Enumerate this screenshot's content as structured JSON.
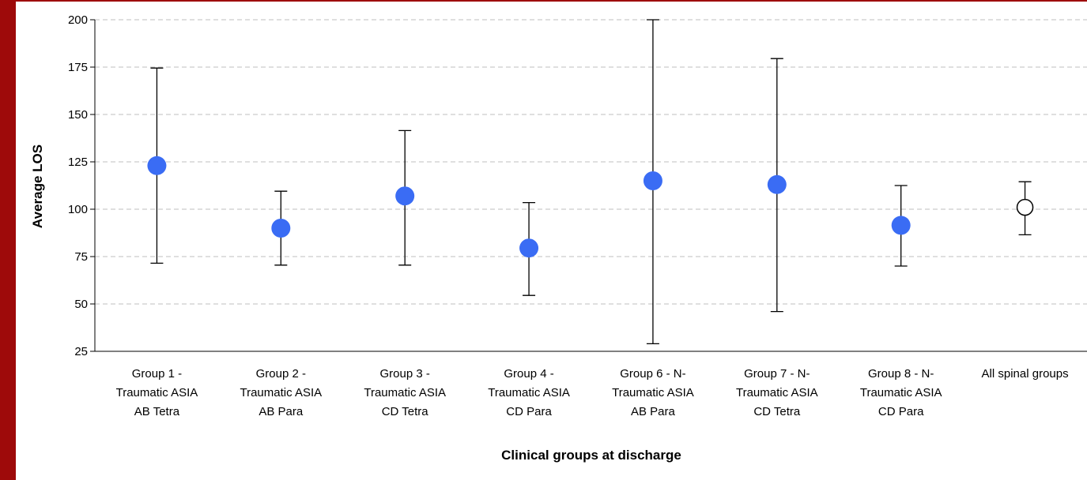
{
  "colors": {
    "frame": "#9e0a0a",
    "point_fill": "#3a6cf4",
    "overall_point_fill": "#ffffff",
    "overall_point_stroke": "#000000",
    "gridline": "#bfbfbf",
    "axis": "#000000"
  },
  "chart_data": {
    "type": "scatter",
    "title": "",
    "xlabel": "Clinical groups at discharge",
    "ylabel": "Average LOS",
    "ylim": [
      25,
      200
    ],
    "yticks": [
      25,
      50,
      75,
      100,
      125,
      150,
      175,
      200
    ],
    "grid": "horizontal dashed",
    "legend": "none",
    "categories": [
      [
        "Group 1 -",
        "Traumatic ASIA",
        "AB Tetra"
      ],
      [
        "Group 2 -",
        "Traumatic ASIA",
        "AB Para"
      ],
      [
        "Group 3 -",
        "Traumatic ASIA",
        "CD Tetra"
      ],
      [
        "Group 4 -",
        "Traumatic ASIA",
        "CD Para"
      ],
      [
        "Group 6 - N-",
        "Traumatic ASIA",
        "AB Para"
      ],
      [
        "Group 7 - N-",
        "Traumatic ASIA",
        "CD Tetra"
      ],
      [
        "Group 8 - N-",
        "Traumatic ASIA",
        "CD Para"
      ],
      [
        "All spinal groups"
      ]
    ],
    "values": [
      123,
      90,
      107,
      79.5,
      115,
      113,
      91.5,
      101
    ],
    "error_low": [
      71.5,
      70.5,
      70.5,
      54.5,
      29,
      46,
      70,
      86.5
    ],
    "error_high": [
      174.5,
      109.5,
      141.5,
      103.5,
      200,
      179.5,
      112.5,
      114.5
    ],
    "point_style": [
      "filled",
      "filled",
      "filled",
      "filled",
      "filled",
      "filled",
      "filled",
      "hollow"
    ]
  }
}
